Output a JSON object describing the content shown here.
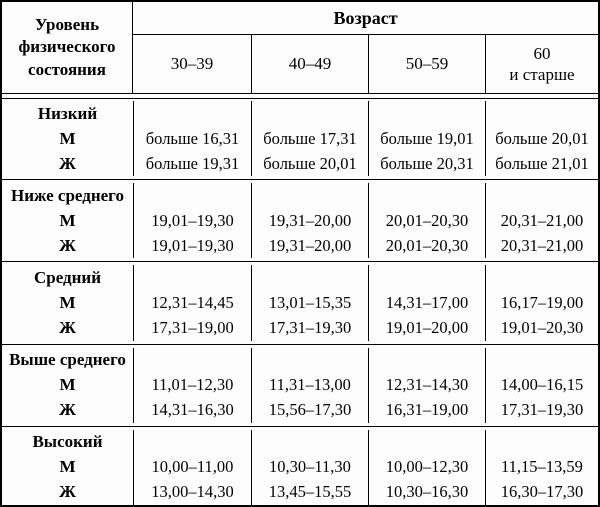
{
  "table": {
    "header": {
      "level_label": "Уровень физического состояния",
      "age_label": "Возраст",
      "age_groups": [
        "30–39",
        "40–49",
        "50–59",
        "60\nи старше"
      ]
    },
    "sections": [
      {
        "level": "Низкий",
        "rows": [
          {
            "sex": "М",
            "values": [
              "больше 16,31",
              "больше 17,31",
              "больше 19,01",
              "больше 20,01"
            ]
          },
          {
            "sex": "Ж",
            "values": [
              "больше 19,31",
              "больше 20,01",
              "больше 20,31",
              "больше 21,01"
            ]
          }
        ]
      },
      {
        "level": "Ниже среднего",
        "rows": [
          {
            "sex": "М",
            "values": [
              "19,01–19,30",
              "19,31–20,00",
              "20,01–20,30",
              "20,31–21,00"
            ]
          },
          {
            "sex": "Ж",
            "values": [
              "19,01–19,30",
              "19,31–20,00",
              "20,01–20,30",
              "20,31–21,00"
            ]
          }
        ]
      },
      {
        "level": "Средний",
        "rows": [
          {
            "sex": "М",
            "values": [
              "12,31–14,45",
              "13,01–15,35",
              "14,31–17,00",
              "16,17–19,00"
            ]
          },
          {
            "sex": "Ж",
            "values": [
              "17,31–19,00",
              "17,31–19,30",
              "19,01–20,00",
              "19,01–20,30"
            ]
          }
        ]
      },
      {
        "level": "Выше среднего",
        "rows": [
          {
            "sex": "М",
            "values": [
              "11,01–12,30",
              "11,31–13,00",
              "12,31–14,30",
              "14,00–16,15"
            ]
          },
          {
            "sex": "Ж",
            "values": [
              "14,31–16,30",
              "15,56–17,30",
              "16,31–19,00",
              "17,31–19,30"
            ]
          }
        ]
      },
      {
        "level": "Высокий",
        "rows": [
          {
            "sex": "М",
            "values": [
              "10,00–11,00",
              "10,30–11,30",
              "10,00–12,30",
              "11,15–13,59"
            ]
          },
          {
            "sex": "Ж",
            "values": [
              "13,00–14,30",
              "13,45–15,55",
              "10,30–16,30",
              "16,30–17,30"
            ]
          }
        ]
      }
    ]
  }
}
